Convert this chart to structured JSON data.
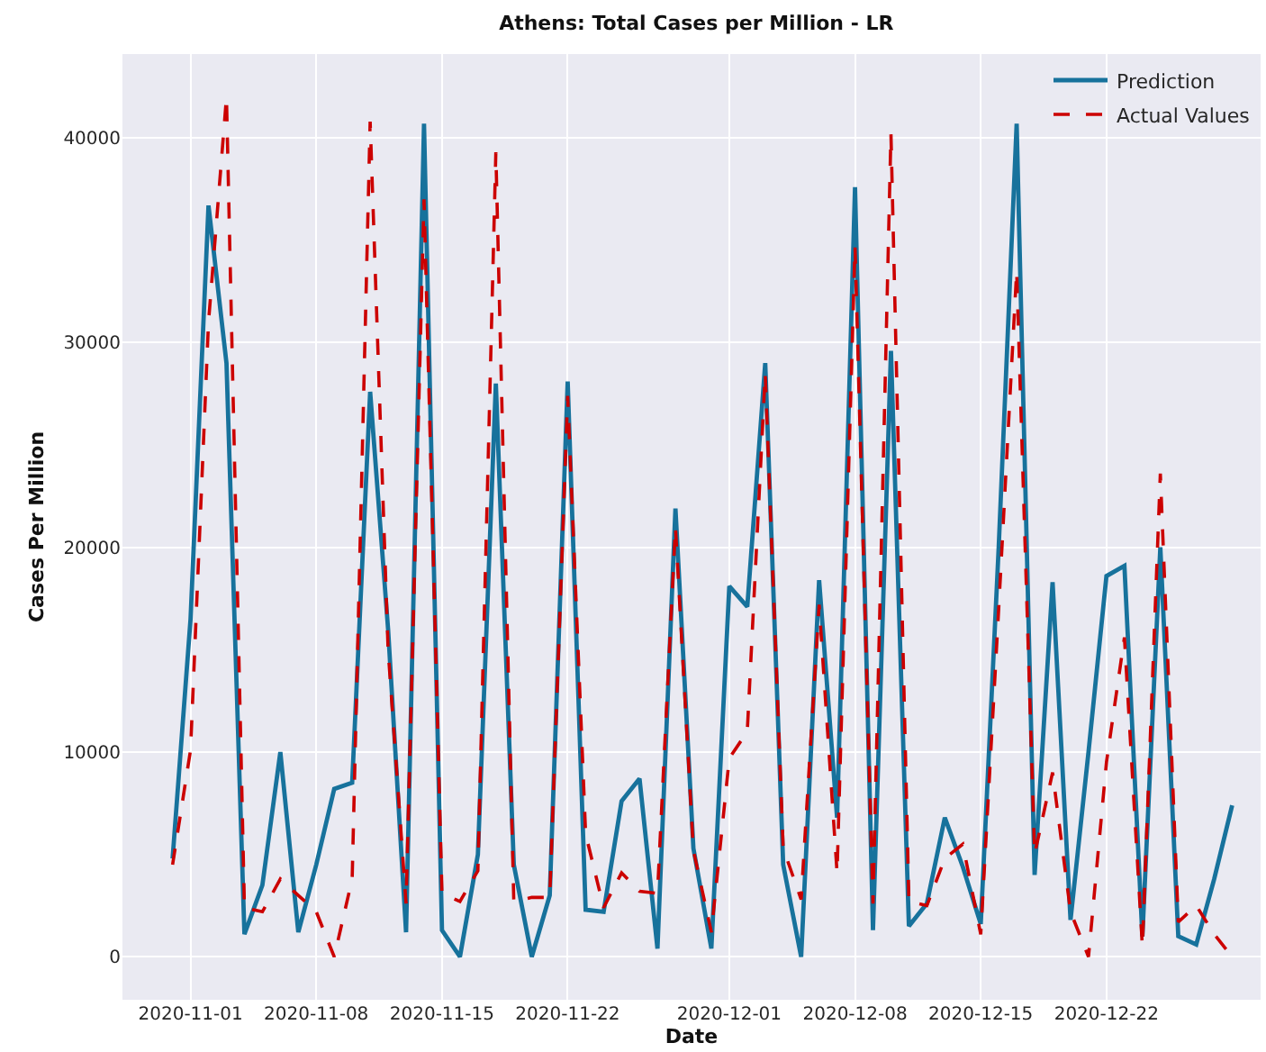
{
  "chart_data": {
    "type": "line",
    "title": "Athens: Total Cases per Million - LR",
    "xlabel": "Date",
    "ylabel": "Cases Per Million",
    "x": [
      "2020-10-31",
      "2020-11-01",
      "2020-11-02",
      "2020-11-03",
      "2020-11-04",
      "2020-11-05",
      "2020-11-06",
      "2020-11-07",
      "2020-11-08",
      "2020-11-09",
      "2020-11-10",
      "2020-11-11",
      "2020-11-12",
      "2020-11-13",
      "2020-11-14",
      "2020-11-15",
      "2020-11-16",
      "2020-11-17",
      "2020-11-18",
      "2020-11-19",
      "2020-11-20",
      "2020-11-21",
      "2020-11-22",
      "2020-11-23",
      "2020-11-24",
      "2020-11-25",
      "2020-11-26",
      "2020-11-27",
      "2020-11-28",
      "2020-11-29",
      "2020-11-30",
      "2020-12-01",
      "2020-12-02",
      "2020-12-03",
      "2020-12-04",
      "2020-12-05",
      "2020-12-06",
      "2020-12-07",
      "2020-12-08",
      "2020-12-09",
      "2020-12-10",
      "2020-12-11",
      "2020-12-12",
      "2020-12-13",
      "2020-12-14",
      "2020-12-15",
      "2020-12-16",
      "2020-12-17",
      "2020-12-18",
      "2020-12-19",
      "2020-12-20",
      "2020-12-21",
      "2020-12-22",
      "2020-12-23",
      "2020-12-24",
      "2020-12-25",
      "2020-12-26",
      "2020-12-27",
      "2020-12-28",
      "2020-12-29"
    ],
    "series": [
      {
        "name": "Prediction",
        "color": "#17729c",
        "line_style": "solid",
        "values": [
          4800,
          16500,
          36700,
          29000,
          1100,
          3500,
          10000,
          1200,
          4500,
          8200,
          8500,
          27600,
          16000,
          1200,
          40700,
          1300,
          0,
          5000,
          28000,
          4500,
          0,
          3000,
          28100,
          2300,
          2200,
          7600,
          8700,
          400,
          21900,
          5300,
          400,
          18100,
          17100,
          29000,
          4500,
          0,
          18400,
          6800,
          37600,
          1300,
          29600,
          1500,
          2600,
          6800,
          4400,
          1600,
          20000,
          40700,
          4000,
          18300,
          1800,
          10000,
          18600,
          19100,
          1000,
          20000,
          1000,
          600,
          3800,
          7400
        ]
      },
      {
        "name": "Actual Values",
        "color": "#cc0000",
        "line_style": "dashed",
        "values": [
          4500,
          10100,
          31000,
          42000,
          2400,
          2200,
          3800,
          3000,
          2200,
          0,
          3800,
          40800,
          15000,
          2600,
          37000,
          3100,
          2700,
          4200,
          39300,
          2700,
          2900,
          2900,
          27400,
          6000,
          2400,
          4100,
          3200,
          3100,
          21000,
          5200,
          1200,
          9700,
          11000,
          28500,
          5300,
          2800,
          17200,
          4100,
          34700,
          2600,
          40200,
          2700,
          2500,
          4800,
          5500,
          1100,
          17000,
          33500,
          5000,
          9000,
          2200,
          0,
          9500,
          15600,
          500,
          23600,
          1700,
          2500,
          1100,
          0
        ]
      }
    ],
    "xlim": [
      "2020-10-28T05:00",
      "2020-12-30T14:00"
    ],
    "xticks": [
      {
        "value": "2020-11-01",
        "label": "2020-11-01"
      },
      {
        "value": "2020-11-08",
        "label": "2020-11-08"
      },
      {
        "value": "2020-11-15",
        "label": "2020-11-15"
      },
      {
        "value": "2020-11-22",
        "label": "2020-11-22"
      },
      {
        "value": "2020-12-01",
        "label": "2020-12-01"
      },
      {
        "value": "2020-12-08",
        "label": "2020-12-08"
      },
      {
        "value": "2020-12-15",
        "label": "2020-12-15"
      },
      {
        "value": "2020-12-22",
        "label": "2020-12-22"
      }
    ],
    "ylim": [
      -2100,
      44100
    ],
    "yticks": [
      0,
      10000,
      20000,
      30000,
      40000
    ],
    "grid": true,
    "legend": "top right",
    "marker": "none"
  }
}
